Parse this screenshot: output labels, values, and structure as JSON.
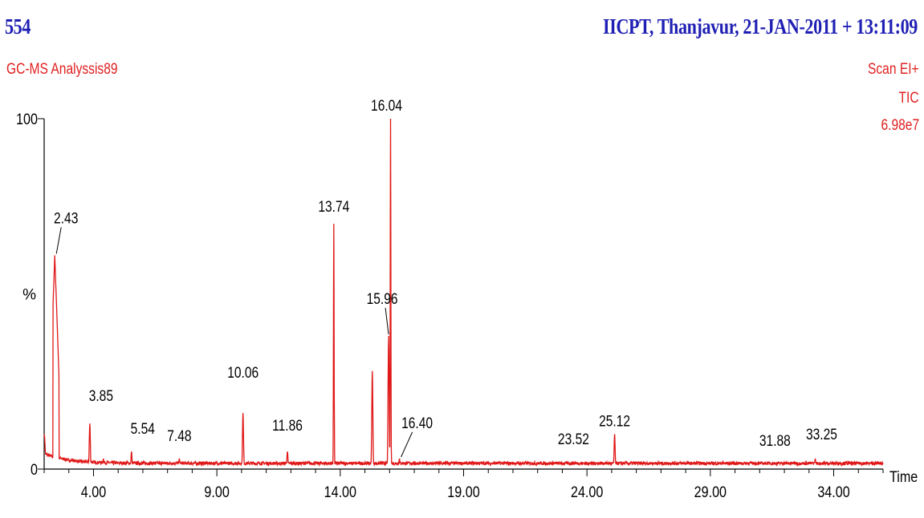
{
  "header": {
    "sample_id": "554",
    "site_stamp": "IICPT, Thanjavur,  21-JAN-2011 + 13:11:09",
    "run_name": "GC-MS Analyssis89",
    "scan_mode": "Scan EI+",
    "trace_type": "TIC",
    "intensity": "6.98e7"
  },
  "chart_data": {
    "type": "line",
    "xlabel": "Time",
    "ylabel": "%",
    "xlim": [
      2.0,
      36.0
    ],
    "ylim": [
      0,
      100
    ],
    "x_ticks": [
      "4.00",
      "9.00",
      "14.00",
      "19.00",
      "24.00",
      "29.00",
      "34.00"
    ],
    "y_ticks": [
      "0",
      "100"
    ],
    "series": [
      {
        "color": "#e01818",
        "peaks": [
          {
            "x": 2.0,
            "y": 10,
            "label": ""
          },
          {
            "x": 2.43,
            "y": 61,
            "label": "2.43"
          },
          {
            "x": 3.15,
            "y": 3,
            "label": ""
          },
          {
            "x": 3.85,
            "y": 13,
            "label": "3.85"
          },
          {
            "x": 4.4,
            "y": 3,
            "label": ""
          },
          {
            "x": 5.54,
            "y": 5,
            "label": "5.54"
          },
          {
            "x": 7.48,
            "y": 3,
            "label": "7.48"
          },
          {
            "x": 8.3,
            "y": 2,
            "label": ""
          },
          {
            "x": 10.06,
            "y": 16,
            "label": "10.06"
          },
          {
            "x": 11.86,
            "y": 5,
            "label": "11.86"
          },
          {
            "x": 13.4,
            "y": 2,
            "label": ""
          },
          {
            "x": 13.74,
            "y": 70,
            "label": "13.74"
          },
          {
            "x": 15.3,
            "y": 28,
            "label": ""
          },
          {
            "x": 15.96,
            "y": 38,
            "label": "15.96"
          },
          {
            "x": 16.04,
            "y": 100,
            "label": "16.04"
          },
          {
            "x": 16.4,
            "y": 3,
            "label": "16.40"
          },
          {
            "x": 17.7,
            "y": 1,
            "label": ""
          },
          {
            "x": 20.2,
            "y": 1,
            "label": ""
          },
          {
            "x": 23.52,
            "y": 2,
            "label": "23.52"
          },
          {
            "x": 25.12,
            "y": 10,
            "label": "25.12"
          },
          {
            "x": 31.88,
            "y": 2,
            "label": "31.88"
          },
          {
            "x": 33.25,
            "y": 3,
            "label": "33.25"
          }
        ]
      }
    ]
  }
}
